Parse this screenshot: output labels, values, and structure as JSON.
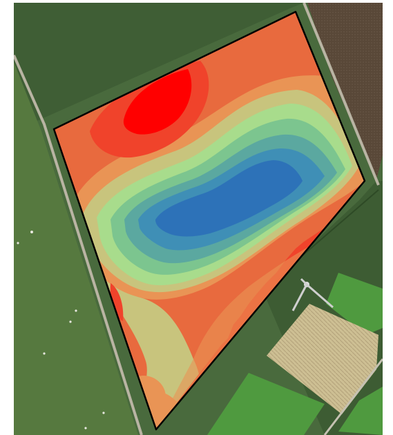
{
  "map": {
    "kind": "aerial-imagery-with-contour-overlay",
    "legend_visible": false,
    "text_labels": [],
    "colors": {
      "field_dark_green": "#3f5e34",
      "field_mid_green": "#4f7040",
      "field_light_green": "#5f8a4a",
      "bright_grass": "#4e8f3e",
      "plowed_field": "#5b4a3a",
      "straw_field": "#c8b98a",
      "road": "#b7b2a2",
      "outline": "#000000"
    },
    "overlay_scale": [
      {
        "level": 1,
        "color": "#ff0000",
        "meaning": "highest"
      },
      {
        "level": 2,
        "color": "#f0432b"
      },
      {
        "level": 3,
        "color": "#e86a3e"
      },
      {
        "level": 4,
        "color": "#e99455"
      },
      {
        "level": 5,
        "color": "#c8c47d"
      },
      {
        "level": 6,
        "color": "#a8dc8c"
      },
      {
        "level": 7,
        "color": "#7cc58f"
      },
      {
        "level": 8,
        "color": "#5ba8a0"
      },
      {
        "level": 9,
        "color": "#3f8fb6"
      },
      {
        "level": 10,
        "color": "#2d72b8",
        "meaning": "lowest"
      }
    ]
  }
}
